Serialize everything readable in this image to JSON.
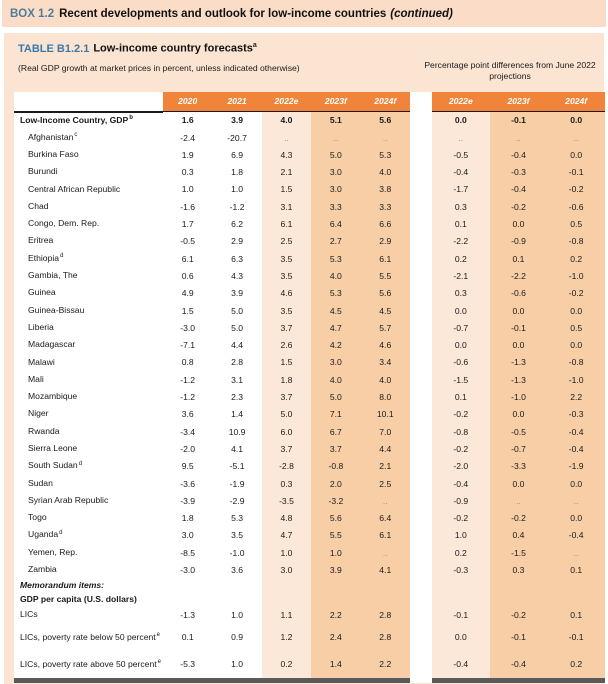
{
  "box": {
    "label": "BOX 1.2",
    "title": "Recent developments and outlook for low-income countries",
    "continued": "(continued)"
  },
  "table": {
    "label": "TABLE B1.2.1",
    "title": "Low-income country forecasts",
    "title_sup": "a",
    "subtitle": "(Real GDP growth at market prices in percent, unless indicated otherwise)",
    "right_header": "Percentage point differences from June 2022 projections",
    "year_columns": [
      "2020",
      "2021",
      "2022e",
      "2023f",
      "2024f"
    ],
    "diff_columns": [
      "2022e",
      "2023f",
      "2024f"
    ]
  },
  "colors": {
    "box_bar_bg": "#FBDDC7",
    "box_body_bg": "#FCE4D3",
    "header_orange": "#F0843A",
    "tint_light": "#FCE8D9",
    "tint_dark": "#F8CEA7",
    "box_label_blue_gray": "#4E7A99",
    "table_label_blue": "#3B79A9",
    "rule_dark": "#1A1A1A",
    "bottom_bar_gray": "#5A5A5A"
  },
  "rows": [
    {
      "label": "Low-Income Country, GDP",
      "sup": "b",
      "type": "total",
      "values": [
        "1.6",
        "3.9",
        "4.0",
        "5.1",
        "5.6"
      ],
      "diffs": [
        "0.0",
        "-0.1",
        "0.0"
      ]
    },
    {
      "label": "Afghanistan",
      "sup": "c",
      "type": "country",
      "values": [
        "-2.4",
        "-20.7",
        "..",
        "..",
        ".."
      ],
      "diffs": [
        "..",
        "..",
        ".."
      ]
    },
    {
      "label": "Burkina Faso",
      "type": "country",
      "values": [
        "1.9",
        "6.9",
        "4.3",
        "5.0",
        "5.3"
      ],
      "diffs": [
        "-0.5",
        "-0.4",
        "0.0"
      ]
    },
    {
      "label": "Burundi",
      "type": "country",
      "values": [
        "0.3",
        "1.8",
        "2.1",
        "3.0",
        "4.0"
      ],
      "diffs": [
        "-0.4",
        "-0.3",
        "-0.1"
      ]
    },
    {
      "label": "Central African Republic",
      "type": "country",
      "values": [
        "1.0",
        "1.0",
        "1.5",
        "3.0",
        "3.8"
      ],
      "diffs": [
        "-1.7",
        "-0.4",
        "-0.2"
      ]
    },
    {
      "label": "Chad",
      "type": "country",
      "values": [
        "-1.6",
        "-1.2",
        "3.1",
        "3.3",
        "3.3"
      ],
      "diffs": [
        "0.3",
        "-0.2",
        "-0.6"
      ]
    },
    {
      "label": "Congo, Dem. Rep.",
      "type": "country",
      "values": [
        "1.7",
        "6.2",
        "6.1",
        "6.4",
        "6.6"
      ],
      "diffs": [
        "0.1",
        "0.0",
        "0.5"
      ]
    },
    {
      "label": "Eritrea",
      "type": "country",
      "values": [
        "-0.5",
        "2.9",
        "2.5",
        "2.7",
        "2.9"
      ],
      "diffs": [
        "-2.2",
        "-0.9",
        "-0.8"
      ]
    },
    {
      "label": "Ethiopia",
      "sup": "d",
      "type": "country",
      "values": [
        "6.1",
        "6.3",
        "3.5",
        "5.3",
        "6.1"
      ],
      "diffs": [
        "0.2",
        "0.1",
        "0.2"
      ]
    },
    {
      "label": "Gambia, The",
      "type": "country",
      "values": [
        "0.6",
        "4.3",
        "3.5",
        "4.0",
        "5.5"
      ],
      "diffs": [
        "-2.1",
        "-2.2",
        "-1.0"
      ]
    },
    {
      "label": "Guinea",
      "type": "country",
      "values": [
        "4.9",
        "3.9",
        "4.6",
        "5.3",
        "5.6"
      ],
      "diffs": [
        "0.3",
        "-0.6",
        "-0.2"
      ]
    },
    {
      "label": "Guinea-Bissau",
      "type": "country",
      "values": [
        "1.5",
        "5.0",
        "3.5",
        "4.5",
        "4.5"
      ],
      "diffs": [
        "0.0",
        "0.0",
        "0.0"
      ]
    },
    {
      "label": "Liberia",
      "type": "country",
      "values": [
        "-3.0",
        "5.0",
        "3.7",
        "4.7",
        "5.7"
      ],
      "diffs": [
        "-0.7",
        "-0.1",
        "0.5"
      ]
    },
    {
      "label": "Madagascar",
      "type": "country",
      "values": [
        "-7.1",
        "4.4",
        "2.6",
        "4.2",
        "4.6"
      ],
      "diffs": [
        "0.0",
        "0.0",
        "0.0"
      ]
    },
    {
      "label": "Malawi",
      "type": "country",
      "values": [
        "0.8",
        "2.8",
        "1.5",
        "3.0",
        "3.4"
      ],
      "diffs": [
        "-0.6",
        "-1.3",
        "-0.8"
      ]
    },
    {
      "label": "Mali",
      "type": "country",
      "values": [
        "-1.2",
        "3.1",
        "1.8",
        "4.0",
        "4.0"
      ],
      "diffs": [
        "-1.5",
        "-1.3",
        "-1.0"
      ]
    },
    {
      "label": "Mozambique",
      "type": "country",
      "values": [
        "-1.2",
        "2.3",
        "3.7",
        "5.0",
        "8.0"
      ],
      "diffs": [
        "0.1",
        "-1.0",
        "2.2"
      ]
    },
    {
      "label": "Niger",
      "type": "country",
      "values": [
        "3.6",
        "1.4",
        "5.0",
        "7.1",
        "10.1"
      ],
      "diffs": [
        "-0.2",
        "0.0",
        "-0.3"
      ]
    },
    {
      "label": "Rwanda",
      "type": "country",
      "values": [
        "-3.4",
        "10.9",
        "6.0",
        "6.7",
        "7.0"
      ],
      "diffs": [
        "-0.8",
        "-0.5",
        "-0.4"
      ]
    },
    {
      "label": "Sierra Leone",
      "type": "country",
      "values": [
        "-2.0",
        "4.1",
        "3.7",
        "3.7",
        "4.4"
      ],
      "diffs": [
        "-0.2",
        "-0.7",
        "-0.4"
      ]
    },
    {
      "label": "South Sudan",
      "sup": "d",
      "type": "country",
      "values": [
        "9.5",
        "-5.1",
        "-2.8",
        "-0.8",
        "2.1"
      ],
      "diffs": [
        "-2.0",
        "-3.3",
        "-1.9"
      ]
    },
    {
      "label": "Sudan",
      "type": "country",
      "values": [
        "-3.6",
        "-1.9",
        "0.3",
        "2.0",
        "2.5"
      ],
      "diffs": [
        "-0.4",
        "0.0",
        "0.0"
      ]
    },
    {
      "label": "Syrian Arab Republic",
      "type": "country",
      "values": [
        "-3.9",
        "-2.9",
        "-3.5",
        "-3.2",
        ".."
      ],
      "diffs": [
        "-0.9",
        "..",
        ".."
      ]
    },
    {
      "label": "Togo",
      "type": "country",
      "values": [
        "1.8",
        "5.3",
        "4.8",
        "5.6",
        "6.4"
      ],
      "diffs": [
        "-0.2",
        "-0.2",
        "0.0"
      ]
    },
    {
      "label": "Uganda",
      "sup": "d",
      "type": "country",
      "values": [
        "3.0",
        "3.5",
        "4.7",
        "5.5",
        "6.1"
      ],
      "diffs": [
        "1.0",
        "0.4",
        "-0.4"
      ]
    },
    {
      "label": "Yemen, Rep.",
      "type": "country",
      "values": [
        "-8.5",
        "-1.0",
        "1.0",
        "1.0",
        ".."
      ],
      "diffs": [
        "0.2",
        "-1.5",
        ".."
      ]
    },
    {
      "label": "Zambia",
      "type": "country",
      "values": [
        "-3.0",
        "3.6",
        "3.0",
        "3.9",
        "4.1"
      ],
      "diffs": [
        "-0.3",
        "0.3",
        "0.1"
      ]
    },
    {
      "label": "Memorandum items:",
      "type": "memo-title"
    },
    {
      "label": "GDP per capita (U.S. dollars)",
      "type": "memo-subtitle"
    },
    {
      "label": "LICs",
      "type": "memo",
      "values": [
        "-1.3",
        "1.0",
        "1.1",
        "2.2",
        "2.8"
      ],
      "diffs": [
        "-0.1",
        "-0.2",
        "0.1"
      ]
    },
    {
      "label": "LICs, poverty rate below 50 percent",
      "sup": "e",
      "type": "memo",
      "tall": true,
      "values": [
        "0.1",
        "0.9",
        "1.2",
        "2.4",
        "2.8"
      ],
      "diffs": [
        "0.0",
        "-0.1",
        "-0.1"
      ]
    },
    {
      "label": "LICs, poverty rate above 50 percent",
      "sup": "e",
      "type": "memo",
      "tall": true,
      "values": [
        "-5.3",
        "1.0",
        "0.2",
        "1.4",
        "2.2"
      ],
      "diffs": [
        "-0.4",
        "-0.4",
        "0.2"
      ]
    }
  ]
}
